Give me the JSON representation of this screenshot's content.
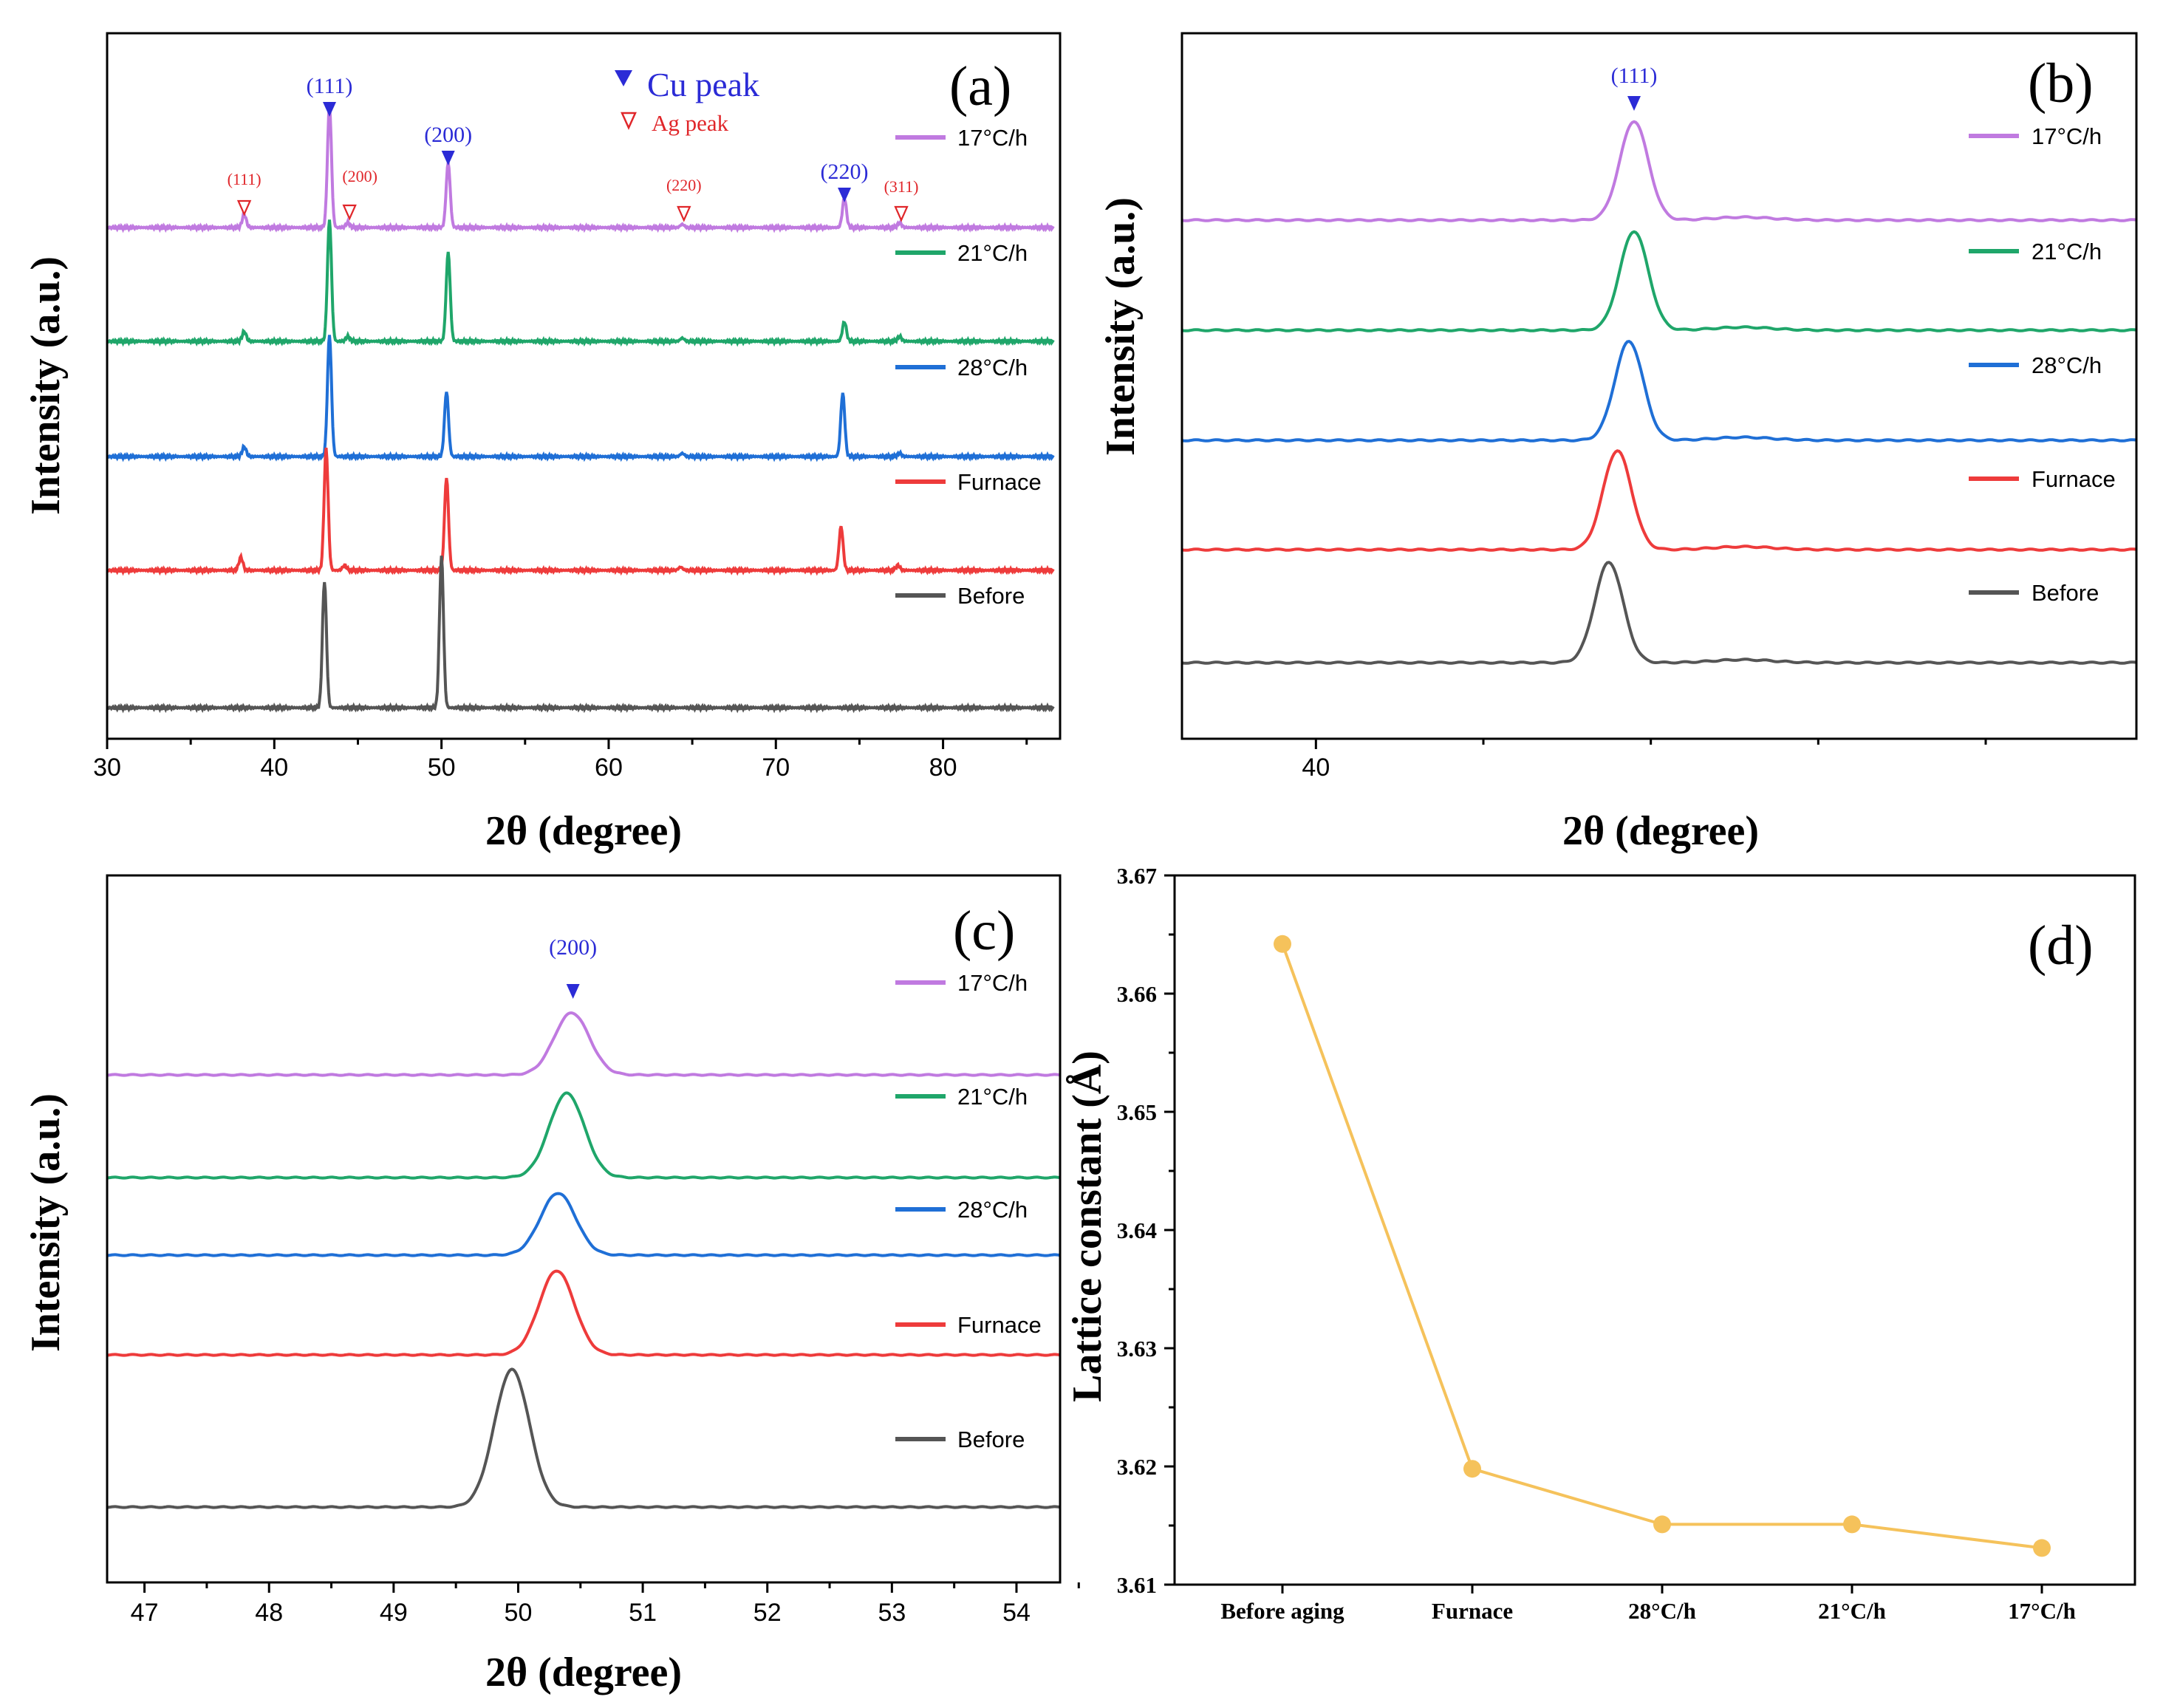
{
  "chart_data": [
    {
      "panel": "(a)",
      "type": "line",
      "xlabel": "2θ (degree)",
      "ylabel": "Intensity (a.u.)",
      "xlim": [
        30,
        87
      ],
      "xticks": [
        30,
        40,
        50,
        60,
        70,
        80
      ],
      "legend_title_cu": "Cu peak",
      "legend_title_ag": "Ag peak",
      "cu_peak_labels": [
        {
          "label": "(111)",
          "x": 43.3
        },
        {
          "label": "(200)",
          "x": 50.4
        },
        {
          "label": "(220)",
          "x": 74.1
        }
      ],
      "ag_peak_labels": [
        {
          "label": "(111)",
          "x": 38.2
        },
        {
          "label": "(200)",
          "x": 44.5
        },
        {
          "label": "(220)",
          "x": 64.5
        },
        {
          "label": "(311)",
          "x": 77.5
        }
      ],
      "series": [
        {
          "name": "17°C/h",
          "color": "#c07ae0",
          "peaks": [
            [
              38.2,
              0.08
            ],
            [
              43.3,
              0.75
            ],
            [
              44.4,
              0.03
            ],
            [
              50.4,
              0.4
            ],
            [
              64.4,
              0.02
            ],
            [
              74.1,
              0.18
            ],
            [
              77.4,
              0.03
            ]
          ]
        },
        {
          "name": "21°C/h",
          "color": "#1fa66a",
          "peaks": [
            [
              38.2,
              0.06
            ],
            [
              43.3,
              0.75
            ],
            [
              44.4,
              0.03
            ],
            [
              50.4,
              0.55
            ],
            [
              64.4,
              0.02
            ],
            [
              74.1,
              0.12
            ],
            [
              77.4,
              0.03
            ]
          ]
        },
        {
          "name": "28°C/h",
          "color": "#1f6fd6",
          "peaks": [
            [
              38.2,
              0.06
            ],
            [
              43.3,
              0.75
            ],
            [
              50.3,
              0.4
            ],
            [
              64.4,
              0.02
            ],
            [
              74.0,
              0.39
            ],
            [
              77.4,
              0.02
            ]
          ]
        },
        {
          "name": "Furnace",
          "color": "#ee3b3b",
          "peaks": [
            [
              38.0,
              0.08
            ],
            [
              43.1,
              0.75
            ],
            [
              44.2,
              0.03
            ],
            [
              50.3,
              0.57
            ],
            [
              64.3,
              0.02
            ],
            [
              73.9,
              0.27
            ],
            [
              77.3,
              0.03
            ]
          ]
        },
        {
          "name": "Before",
          "color": "#555555",
          "peaks": [
            [
              43.0,
              0.78
            ],
            [
              50.0,
              0.93
            ]
          ]
        }
      ]
    },
    {
      "panel": "(b)",
      "type": "line",
      "xlabel": "2θ (degree)",
      "ylabel": "Intensity (a.u.)",
      "xlim": [
        39.2,
        44.9
      ],
      "xticks": [
        40
      ],
      "minor_ticks": [
        41,
        42,
        43,
        44
      ],
      "cu_peak_labels": [
        {
          "label": "(111)",
          "x": 41.9
        }
      ],
      "series": [
        {
          "name": "17°C/h",
          "color": "#c07ae0",
          "peak_x": 41.9,
          "height": 0.67
        },
        {
          "name": "21°C/h",
          "color": "#1fa66a",
          "peak_x": 41.9,
          "height": 0.67
        },
        {
          "name": "28°C/h",
          "color": "#1f6fd6",
          "peak_x": 41.87,
          "height": 0.67
        },
        {
          "name": "Furnace",
          "color": "#ee3b3b",
          "peak_x": 41.8,
          "height": 0.67
        },
        {
          "name": "Before",
          "color": "#555555",
          "peak_x": 41.75,
          "height": 0.68
        }
      ]
    },
    {
      "panel": "(c)",
      "type": "line",
      "xlabel": "2θ (degree)",
      "ylabel": "Intensity (a.u.)",
      "xlim": [
        46.7,
        54.35
      ],
      "xticks": [
        47,
        48,
        49,
        50,
        51,
        52,
        53,
        54
      ],
      "cu_peak_labels": [
        {
          "label": "(200)",
          "x": 50.44
        }
      ],
      "series": [
        {
          "name": "17°C/h",
          "color": "#c07ae0",
          "peak_x": 50.43,
          "height": 0.42
        },
        {
          "name": "21°C/h",
          "color": "#1fa66a",
          "peak_x": 50.39,
          "height": 0.57
        },
        {
          "name": "28°C/h",
          "color": "#1f6fd6",
          "peak_x": 50.32,
          "height": 0.42
        },
        {
          "name": "Furnace",
          "color": "#ee3b3b",
          "peak_x": 50.31,
          "height": 0.57
        },
        {
          "name": "Before",
          "color": "#555555",
          "peak_x": 49.95,
          "height": 0.93
        }
      ]
    },
    {
      "panel": "(d)",
      "type": "line",
      "xlabel": "",
      "ylabel": "Lattice constant (Å)",
      "ylim": [
        3.61,
        3.67
      ],
      "yticks": [
        "3.61",
        "3.62",
        "3.63",
        "3.64",
        "3.65",
        "3.66",
        "3.67"
      ],
      "categories": [
        "Before aging",
        "Furnace",
        "28°C/h",
        "21°C/h",
        "17°C/h"
      ],
      "values": [
        3.6642,
        3.6198,
        3.6151,
        3.6151,
        3.6131
      ],
      "color": "#f5c25b"
    }
  ]
}
